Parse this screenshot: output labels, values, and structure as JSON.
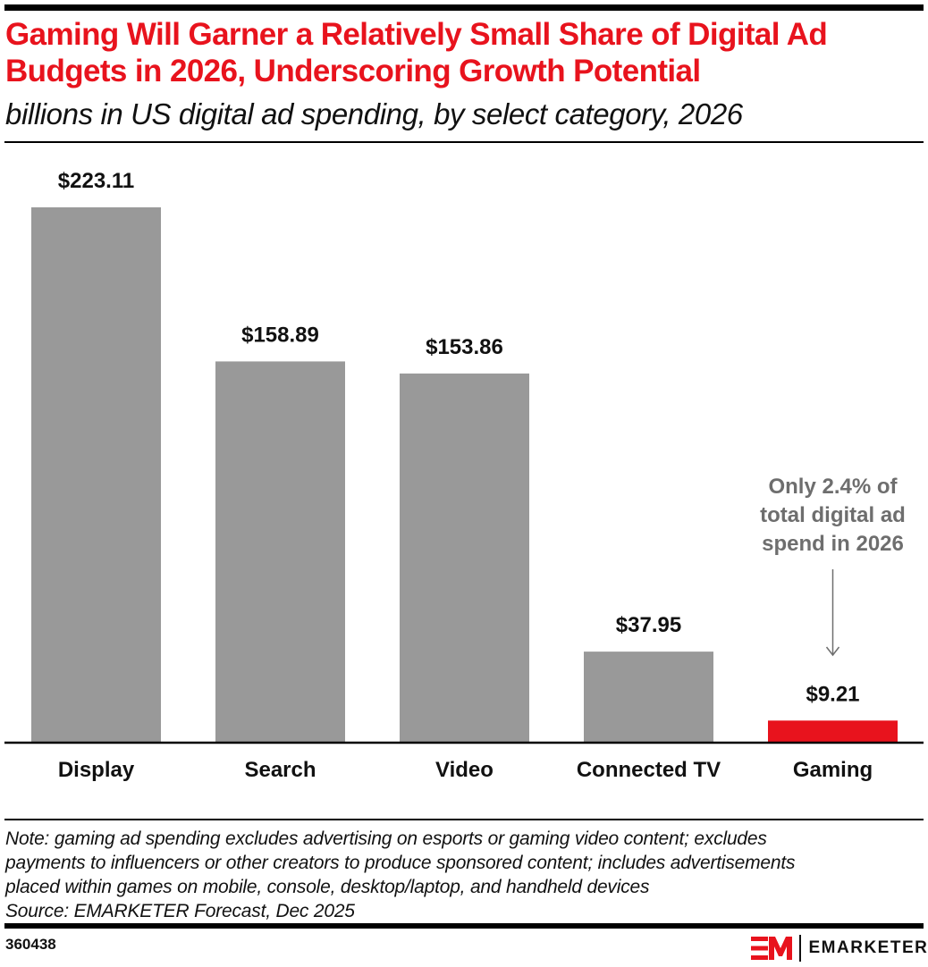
{
  "header": {
    "title": "Gaming Will Garner a Relatively Small Share of Digital Ad Budgets in 2026, Underscoring Growth Potential",
    "subtitle": "billions in US digital ad spending, by select category, 2026"
  },
  "chart_data": {
    "type": "bar",
    "title": "Gaming Will Garner a Relatively Small Share of Digital Ad Budgets in 2026, Underscoring Growth Potential",
    "subtitle": "billions in US digital ad spending, by select category, 2026",
    "categories": [
      "Display",
      "Search",
      "Video",
      "Connected TV",
      "Gaming"
    ],
    "values": [
      223.11,
      158.89,
      153.86,
      37.95,
      9.21
    ],
    "data_labels": [
      "$223.11",
      "$158.89",
      "$153.86",
      "$37.95",
      "$9.21"
    ],
    "highlight_index": 4,
    "colors": {
      "default": "#999999",
      "highlight": "#e8131d"
    },
    "ylim": [
      0,
      223.11
    ],
    "grid": false,
    "xlabel": "",
    "ylabel": "",
    "annotation": {
      "target": "Gaming",
      "lines": [
        "Only 2.4% of",
        "total digital ad",
        "spend in 2026"
      ]
    }
  },
  "footer": {
    "note_lines": [
      "Note: gaming ad spending excludes advertising on esports or gaming video content; excludes",
      "payments to influencers or other creators to produce sponsored content; includes advertisements",
      "placed within games on mobile, console, desktop/laptop, and handheld devices",
      "Source: EMARKETER Forecast, Dec 2025"
    ],
    "chart_id": "360438",
    "brand": "EMARKETER",
    "brand_mark": "EM"
  }
}
